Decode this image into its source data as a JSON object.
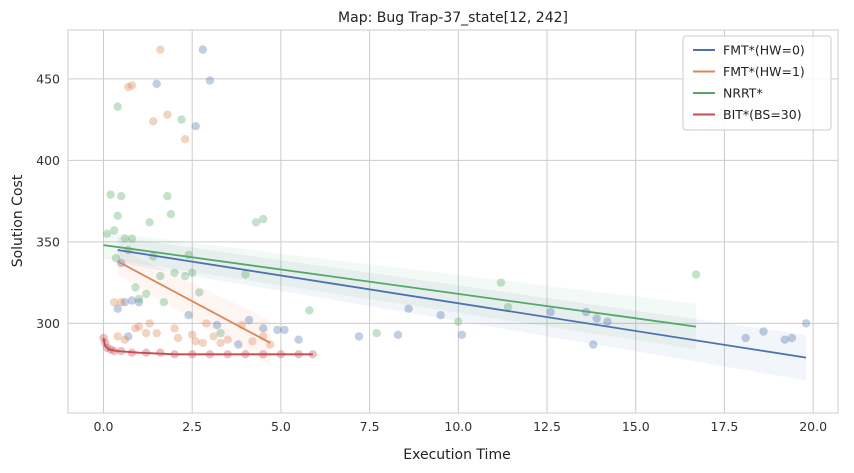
{
  "chart_data": {
    "type": "scatter",
    "title": "Map: Bug Trap-37_state[12, 242]",
    "xlabel": "Execution Time",
    "ylabel": "Solution Cost",
    "xlim": [
      -1.0,
      20.7
    ],
    "ylim": [
      245,
      480
    ],
    "xticks": [
      0.0,
      2.5,
      5.0,
      7.5,
      10.0,
      12.5,
      15.0,
      17.5,
      20.0
    ],
    "xtick_labels": [
      "0.0",
      "2.5",
      "5.0",
      "7.5",
      "10.0",
      "12.5",
      "15.0",
      "17.5",
      "20.0"
    ],
    "yticks": [
      300,
      350,
      400,
      450
    ],
    "ytick_labels": [
      "300",
      "350",
      "400",
      "450"
    ],
    "grid": true,
    "legend_position": "top-right",
    "series": [
      {
        "name": "FMT*(HW=0)",
        "color": "#4c72b0",
        "points": [
          [
            0.4,
            309
          ],
          [
            0.5,
            337
          ],
          [
            0.6,
            313
          ],
          [
            0.7,
            292
          ],
          [
            0.8,
            314
          ],
          [
            1.0,
            313
          ],
          [
            1.5,
            447
          ],
          [
            2.4,
            305
          ],
          [
            2.6,
            421
          ],
          [
            2.8,
            468
          ],
          [
            3.0,
            449
          ],
          [
            3.2,
            299
          ],
          [
            3.8,
            287
          ],
          [
            4.1,
            302
          ],
          [
            4.5,
            297
          ],
          [
            4.9,
            296
          ],
          [
            5.1,
            296
          ],
          [
            5.5,
            290
          ],
          [
            7.2,
            292
          ],
          [
            8.3,
            293
          ],
          [
            8.6,
            309
          ],
          [
            9.5,
            305
          ],
          [
            10.1,
            293
          ],
          [
            12.6,
            307
          ],
          [
            13.6,
            307
          ],
          [
            13.8,
            287
          ],
          [
            13.9,
            303
          ],
          [
            14.2,
            301
          ],
          [
            18.1,
            291
          ],
          [
            18.6,
            295
          ],
          [
            19.2,
            290
          ],
          [
            19.4,
            291
          ],
          [
            19.8,
            300
          ]
        ],
        "trend": {
          "x": [
            0.4,
            19.8
          ],
          "y": [
            345,
            279
          ]
        }
      },
      {
        "name": "FMT*(HW=1)",
        "color": "#dd8452",
        "points": [
          [
            0.3,
            313
          ],
          [
            0.4,
            292
          ],
          [
            0.5,
            313
          ],
          [
            0.6,
            290
          ],
          [
            0.7,
            445
          ],
          [
            0.8,
            446
          ],
          [
            0.9,
            297
          ],
          [
            1.0,
            298
          ],
          [
            1.2,
            294
          ],
          [
            1.3,
            300
          ],
          [
            1.4,
            424
          ],
          [
            1.5,
            294
          ],
          [
            1.6,
            468
          ],
          [
            1.8,
            428
          ],
          [
            2.0,
            297
          ],
          [
            2.1,
            291
          ],
          [
            2.3,
            413
          ],
          [
            2.5,
            293
          ],
          [
            2.6,
            289
          ],
          [
            2.8,
            288
          ],
          [
            2.9,
            300
          ],
          [
            3.1,
            292
          ],
          [
            3.3,
            288
          ],
          [
            3.5,
            290
          ],
          [
            3.9,
            299
          ],
          [
            4.2,
            289
          ],
          [
            4.5,
            292
          ],
          [
            4.7,
            287
          ]
        ],
        "trend": {
          "x": [
            0.4,
            4.7
          ],
          "y": [
            338,
            288
          ]
        }
      },
      {
        "name": "NRRT*",
        "color": "#55a868",
        "points": [
          [
            0.1,
            355
          ],
          [
            0.2,
            379
          ],
          [
            0.3,
            357
          ],
          [
            0.35,
            340
          ],
          [
            0.4,
            433
          ],
          [
            0.4,
            366
          ],
          [
            0.5,
            378
          ],
          [
            0.6,
            352
          ],
          [
            0.7,
            345
          ],
          [
            0.8,
            352
          ],
          [
            0.9,
            322
          ],
          [
            1.0,
            315
          ],
          [
            1.2,
            318
          ],
          [
            1.3,
            362
          ],
          [
            1.4,
            341
          ],
          [
            1.6,
            329
          ],
          [
            1.7,
            313
          ],
          [
            1.8,
            378
          ],
          [
            1.9,
            367
          ],
          [
            2.0,
            331
          ],
          [
            2.2,
            425
          ],
          [
            2.3,
            329
          ],
          [
            2.4,
            342
          ],
          [
            2.5,
            331
          ],
          [
            2.7,
            319
          ],
          [
            3.3,
            294
          ],
          [
            4.0,
            330
          ],
          [
            4.3,
            362
          ],
          [
            4.5,
            364
          ],
          [
            5.8,
            308
          ],
          [
            7.7,
            294
          ],
          [
            10.0,
            301
          ],
          [
            11.2,
            325
          ],
          [
            11.4,
            310
          ],
          [
            16.7,
            330
          ]
        ],
        "trend": {
          "x": [
            0.0,
            16.7
          ],
          "y": [
            348,
            298
          ]
        }
      },
      {
        "name": "BIT*(BS=30)",
        "color": "#c44e52",
        "points": [
          [
            0.0,
            291
          ],
          [
            0.05,
            288
          ],
          [
            0.1,
            285
          ],
          [
            0.2,
            284
          ],
          [
            0.3,
            283
          ],
          [
            0.5,
            283
          ],
          [
            0.8,
            282
          ],
          [
            1.2,
            282
          ],
          [
            1.6,
            282
          ],
          [
            2.0,
            281
          ],
          [
            2.5,
            281
          ],
          [
            3.0,
            281
          ],
          [
            3.5,
            281
          ],
          [
            4.0,
            281
          ],
          [
            4.5,
            281
          ],
          [
            5.0,
            281
          ],
          [
            5.5,
            281
          ],
          [
            5.9,
            281
          ]
        ],
        "trend": {
          "x": [
            0.0,
            0.05,
            0.15,
            0.4,
            1.0,
            2.0,
            5.9
          ],
          "y": [
            291,
            286,
            284,
            283,
            282,
            281,
            281
          ]
        }
      }
    ]
  }
}
